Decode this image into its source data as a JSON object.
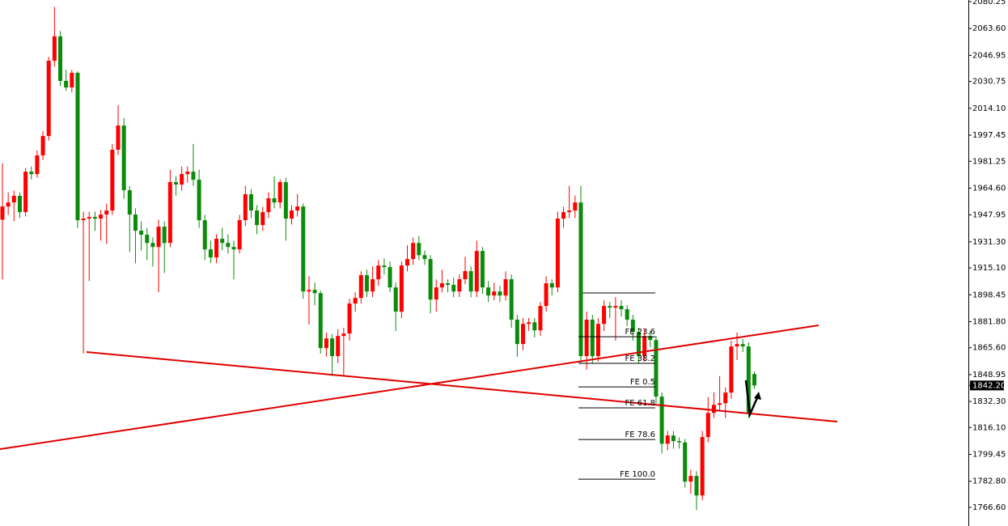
{
  "chart_data": {
    "type": "candlestick",
    "up_color": "#ff0000",
    "down_color": "#0b8b0b",
    "ylim": [
      1755.06,
      2081.25
    ],
    "yticks": [
      2080.25,
      {
        "value": 2063.6,
        "label": "2063.60"
      },
      2046.95,
      2030.75,
      {
        "value": 2014.1,
        "label": "2014.10"
      },
      1997.45,
      1981.25,
      {
        "value": 1964.6,
        "label": "1964.60"
      },
      1947.95,
      {
        "value": 1931.3,
        "label": "1931.30"
      },
      {
        "value": 1915.1,
        "label": "1915.10"
      },
      1898.45,
      {
        "value": 1881.8,
        "label": "1881.80"
      },
      {
        "value": 1865.6,
        "label": "1865.60"
      },
      1848.95,
      {
        "value": 1832.3,
        "label": "1832.30"
      },
      {
        "value": 1816.1,
        "label": "1816.10"
      },
      1799.45,
      {
        "value": 1782.8,
        "label": "1782.80"
      },
      {
        "value": 1766.6,
        "label": "1766.60"
      }
    ],
    "current_price": {
      "value": 1842.2,
      "label": "1842.20"
    },
    "fib_levels": [
      {
        "label": "FE 23.6",
        "value": 1872.4
      },
      {
        "label": "FE 38.2",
        "value": 1855.9
      },
      {
        "label": "FE 0.5",
        "value": 1841.3
      },
      {
        "label": "FE 61.8",
        "value": 1828.3
      },
      {
        "label": "FE 78.6",
        "value": 1808.7
      },
      {
        "label": "FE 100.0",
        "value": 1784.1
      }
    ],
    "ohlc": [
      [
        1945.0,
        1980,
        1908,
        1953.2
      ],
      [
        1953.2,
        1962,
        1948,
        1955.7
      ],
      [
        1955.7,
        1963,
        1944,
        1959.8
      ],
      [
        1959.8,
        1962,
        1946,
        1949.7
      ],
      [
        1949.7,
        1977,
        1947,
        1974.8
      ],
      [
        1974.8,
        1978,
        1970,
        1973.3
      ],
      [
        1973.3,
        1988,
        1971,
        1984.9
      ],
      [
        1984.9,
        2000,
        1982,
        1996.9
      ],
      [
        1996.9,
        2046,
        1994,
        2043.6
      ],
      [
        2043.6,
        2077,
        2040,
        2058.7
      ],
      [
        2058.7,
        2062,
        2028,
        2031.1
      ],
      [
        2031.1,
        2038,
        2025,
        2027.0
      ],
      [
        2027.0,
        2038,
        2024,
        2036.1
      ],
      [
        2036.1,
        2037,
        1940,
        1944.7
      ],
      [
        1944.7,
        1950,
        1862,
        1945.7
      ],
      [
        1945.7,
        1950,
        1907,
        1946.7
      ],
      [
        1946.7,
        1950,
        1938,
        1945.7
      ],
      [
        1945.7,
        1951,
        1932,
        1948.2
      ],
      [
        1948.2,
        1955,
        1930,
        1950.7
      ],
      [
        1950.7,
        1992,
        1948,
        1988.4
      ],
      [
        1988.4,
        2016,
        1985,
        2003.4
      ],
      [
        2003.4,
        2008,
        1958,
        1963.3
      ],
      [
        1963.3,
        1966,
        1925,
        1948.2
      ],
      [
        1948.2,
        1952,
        1918,
        1938.2
      ],
      [
        1938.2,
        1944,
        1926,
        1935.7
      ],
      [
        1935.7,
        1940,
        1920,
        1930.6
      ],
      [
        1930.6,
        1934,
        1916,
        1928.1
      ],
      [
        1928.1,
        1945,
        1900,
        1940.7
      ],
      [
        1940.7,
        1944,
        1912,
        1930.6
      ],
      [
        1930.6,
        1976,
        1928,
        1968.3
      ],
      [
        1968.3,
        1972,
        1960,
        1966.8
      ],
      [
        1966.8,
        1978,
        1963,
        1973.3
      ],
      [
        1973.3,
        1978,
        1968,
        1974.8
      ],
      [
        1974.8,
        1992,
        1966,
        1969.8
      ],
      [
        1969.8,
        1976,
        1940,
        1944.7
      ],
      [
        1944.7,
        1948,
        1920,
        1926.6
      ],
      [
        1926.6,
        1932,
        1918,
        1921.6
      ],
      [
        1921.6,
        1936,
        1918,
        1933.2
      ],
      [
        1933.2,
        1940,
        1926,
        1930.6
      ],
      [
        1930.6,
        1936,
        1924,
        1928.1
      ],
      [
        1928.1,
        1932,
        1908,
        1926.6
      ],
      [
        1926.6,
        1948,
        1924,
        1944.7
      ],
      [
        1944.7,
        1966,
        1941,
        1960.8
      ],
      [
        1960.8,
        1964,
        1946,
        1950.7
      ],
      [
        1950.7,
        1954,
        1936,
        1941.7
      ],
      [
        1941.7,
        1953,
        1938,
        1949.7
      ],
      [
        1949.7,
        1962,
        1946,
        1958.3
      ],
      [
        1958.3,
        1972,
        1952,
        1955.7
      ],
      [
        1955.7,
        1970,
        1952,
        1968.3
      ],
      [
        1968.3,
        1971,
        1932,
        1945.7
      ],
      [
        1945.7,
        1954,
        1942,
        1950.7
      ],
      [
        1950.7,
        1961,
        1947,
        1953.2
      ],
      [
        1953.2,
        1955,
        1896,
        1900.5
      ],
      [
        1900.5,
        1910,
        1880,
        1901.5
      ],
      [
        1901.5,
        1906,
        1892,
        1899.5
      ],
      [
        1899.5,
        1901,
        1862,
        1865.4
      ],
      [
        1865.4,
        1875,
        1860,
        1871.4
      ],
      [
        1871.4,
        1874,
        1848,
        1860.4
      ],
      [
        1860.4,
        1877,
        1856,
        1872.9
      ],
      [
        1872.9,
        1878,
        1848,
        1874.4
      ],
      [
        1874.4,
        1896,
        1870,
        1893.0
      ],
      [
        1893.0,
        1900,
        1888,
        1896.5
      ],
      [
        1896.5,
        1913,
        1893,
        1910.6
      ],
      [
        1910.6,
        1914,
        1897,
        1900.5
      ],
      [
        1900.5,
        1916,
        1897,
        1908.1
      ],
      [
        1908.1,
        1920,
        1904,
        1916.6
      ],
      [
        1916.6,
        1921,
        1911,
        1915.6
      ],
      [
        1915.6,
        1919,
        1900,
        1903.0
      ],
      [
        1903.0,
        1906,
        1876,
        1888.0
      ],
      [
        1888.0,
        1919,
        1884,
        1916.6
      ],
      [
        1916.6,
        1929,
        1913,
        1920.6
      ],
      [
        1920.6,
        1934,
        1917,
        1930.6
      ],
      [
        1930.6,
        1935,
        1920,
        1923.0
      ],
      [
        1923.0,
        1926,
        1917,
        1920.6
      ],
      [
        1920.6,
        1923,
        1887,
        1895.5
      ],
      [
        1895.5,
        1908,
        1888,
        1903.0
      ],
      [
        1903.0,
        1914,
        1900,
        1905.6
      ],
      [
        1905.6,
        1908,
        1900,
        1904.6
      ],
      [
        1904.6,
        1909,
        1897,
        1900.5
      ],
      [
        1900.5,
        1911,
        1897,
        1908.1
      ],
      [
        1908.1,
        1922,
        1905,
        1913.1
      ],
      [
        1913.1,
        1916,
        1897,
        1900.5
      ],
      [
        1900.5,
        1932,
        1897,
        1925.6
      ],
      [
        1925.6,
        1928,
        1899,
        1903.0
      ],
      [
        1903.0,
        1907,
        1894,
        1898.0
      ],
      [
        1898.0,
        1906,
        1895,
        1900.5
      ],
      [
        1900.5,
        1904,
        1894,
        1898.0
      ],
      [
        1898.0,
        1913,
        1895,
        1908.1
      ],
      [
        1908.1,
        1911,
        1878,
        1883.0
      ],
      [
        1883.0,
        1886,
        1860,
        1867.9
      ],
      [
        1867.9,
        1884,
        1864,
        1880.4
      ],
      [
        1880.4,
        1884,
        1876,
        1881.4
      ],
      [
        1881.4,
        1884,
        1872,
        1876.4
      ],
      [
        1876.4,
        1894,
        1873,
        1891.5
      ],
      [
        1891.5,
        1910,
        1888,
        1905.6
      ],
      [
        1905.6,
        1908,
        1898,
        1903.0
      ],
      [
        1903.0,
        1950,
        1900,
        1945.7
      ],
      [
        1945.7,
        1953,
        1940,
        1949.7
      ],
      [
        1949.7,
        1966,
        1946,
        1950.7
      ],
      [
        1950.7,
        1960,
        1946,
        1955.7
      ],
      [
        1955.7,
        1966,
        1856,
        1860.4
      ],
      [
        1860.4,
        1888,
        1852,
        1883.0
      ],
      [
        1883.0,
        1886,
        1856,
        1860.4
      ],
      [
        1860.4,
        1884,
        1857,
        1880.4
      ],
      [
        1880.4,
        1895,
        1876,
        1891.5
      ],
      [
        1891.5,
        1894,
        1884,
        1890.5
      ],
      [
        1890.5,
        1897,
        1870,
        1891.5
      ],
      [
        1891.5,
        1895,
        1885,
        1889.5
      ],
      [
        1889.5,
        1892,
        1879,
        1883.0
      ],
      [
        1883.0,
        1886,
        1870,
        1875.4
      ],
      [
        1875.4,
        1878,
        1856,
        1860.4
      ],
      [
        1860.4,
        1877,
        1857,
        1872.9
      ],
      [
        1872.9,
        1876,
        1866,
        1870.4
      ],
      [
        1870.4,
        1873,
        1831,
        1835.3
      ],
      [
        1835.3,
        1838,
        1800,
        1806.1
      ],
      [
        1806.1,
        1814,
        1802,
        1811.2
      ],
      [
        1811.2,
        1814,
        1803,
        1807.7
      ],
      [
        1807.7,
        1810,
        1803,
        1806.9
      ],
      [
        1806.9,
        1809,
        1779,
        1782.6
      ],
      [
        1782.6,
        1790,
        1775,
        1786.1
      ],
      [
        1786.1,
        1789,
        1765,
        1774.0
      ],
      [
        1774.0,
        1814,
        1771,
        1810.2
      ],
      [
        1810.2,
        1835,
        1807,
        1825.2
      ],
      [
        1825.2,
        1838,
        1822,
        1830.2
      ],
      [
        1830.2,
        1848,
        1827,
        1831.2
      ],
      [
        1831.2,
        1841,
        1822,
        1837.8
      ],
      [
        1837.8,
        1870,
        1834,
        1866.4
      ],
      [
        1866.4,
        1875,
        1858,
        1867.9
      ],
      [
        1867.9,
        1871,
        1863,
        1866.4
      ],
      [
        1866.4,
        1869,
        1822,
        1825.2
      ],
      [
        1849.3,
        1851,
        1840,
        1842.2
      ]
    ]
  }
}
